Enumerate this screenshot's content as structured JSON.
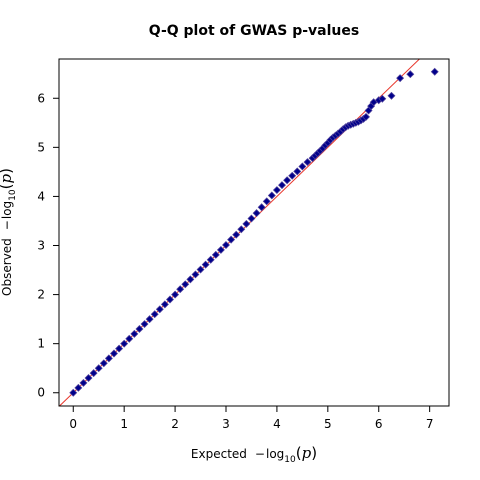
{
  "chart_data": {
    "type": "scatter",
    "title": "Q-Q plot of GWAS p-values",
    "xlabel": {
      "prefix": "Expected",
      "minus": "−",
      "log": "log",
      "base": "10",
      "open": "(",
      "var": "p",
      "close": ")"
    },
    "ylabel": {
      "prefix": "Observed",
      "minus": "−",
      "log": "log",
      "base": "10",
      "open": "(",
      "var": "p",
      "close": ")"
    },
    "xlim": [
      -0.28,
      7.38
    ],
    "ylim": [
      -0.27,
      6.8
    ],
    "xticks": [
      0,
      1,
      2,
      3,
      4,
      5,
      6,
      7
    ],
    "yticks": [
      0,
      1,
      2,
      3,
      4,
      5,
      6
    ],
    "xtick_labels": [
      "0",
      "1",
      "2",
      "3",
      "4",
      "5",
      "6",
      "7"
    ],
    "ytick_labels": [
      "0",
      "1",
      "2",
      "3",
      "4",
      "5",
      "6"
    ],
    "grid": false,
    "legend": "none",
    "reference_line": {
      "slope": 1,
      "intercept": 0,
      "color": "#e8362b"
    },
    "colors": {
      "marker_fill": "#00008b",
      "marker_edge": "#4a3d9a"
    },
    "marker": "diamond",
    "series": [
      {
        "x": [
          0.0,
          0.1,
          0.2,
          0.3,
          0.4,
          0.5,
          0.6,
          0.7,
          0.8,
          0.9,
          1.0,
          1.1,
          1.2,
          1.3,
          1.4,
          1.5,
          1.6,
          1.7,
          1.8,
          1.9,
          2.0,
          2.1,
          2.2,
          2.3,
          2.4,
          2.5,
          2.6,
          2.7,
          2.8,
          2.9,
          3.0,
          3.1,
          3.2,
          3.3,
          3.4,
          3.5,
          3.6,
          3.7,
          3.8,
          3.9,
          4.0,
          4.1,
          4.2,
          4.3,
          4.4,
          4.5,
          4.6,
          4.7,
          4.75,
          4.8,
          4.85,
          4.9,
          4.95,
          5.0,
          5.05,
          5.1,
          5.15,
          5.2,
          5.25,
          5.3,
          5.35,
          5.4,
          5.45,
          5.5,
          5.55,
          5.6,
          5.65,
          5.7,
          5.75,
          5.8,
          5.85,
          5.9,
          6.0,
          6.07,
          6.25,
          6.42,
          6.62,
          7.1
        ],
        "y": [
          0.0,
          0.1,
          0.2,
          0.3,
          0.4,
          0.5,
          0.6,
          0.7,
          0.8,
          0.9,
          1.0,
          1.1,
          1.2,
          1.3,
          1.4,
          1.5,
          1.6,
          1.7,
          1.8,
          1.9,
          2.0,
          2.11,
          2.21,
          2.31,
          2.41,
          2.51,
          2.61,
          2.71,
          2.81,
          2.91,
          3.01,
          3.12,
          3.22,
          3.33,
          3.44,
          3.55,
          3.66,
          3.78,
          3.9,
          4.02,
          4.13,
          4.23,
          4.33,
          4.42,
          4.51,
          4.61,
          4.7,
          4.78,
          4.83,
          4.88,
          4.93,
          4.98,
          5.04,
          5.09,
          5.15,
          5.2,
          5.24,
          5.28,
          5.32,
          5.37,
          5.41,
          5.44,
          5.46,
          5.48,
          5.5,
          5.52,
          5.55,
          5.58,
          5.62,
          5.75,
          5.84,
          5.92,
          5.96,
          5.99,
          6.05,
          6.41,
          6.49,
          6.54
        ]
      }
    ]
  }
}
